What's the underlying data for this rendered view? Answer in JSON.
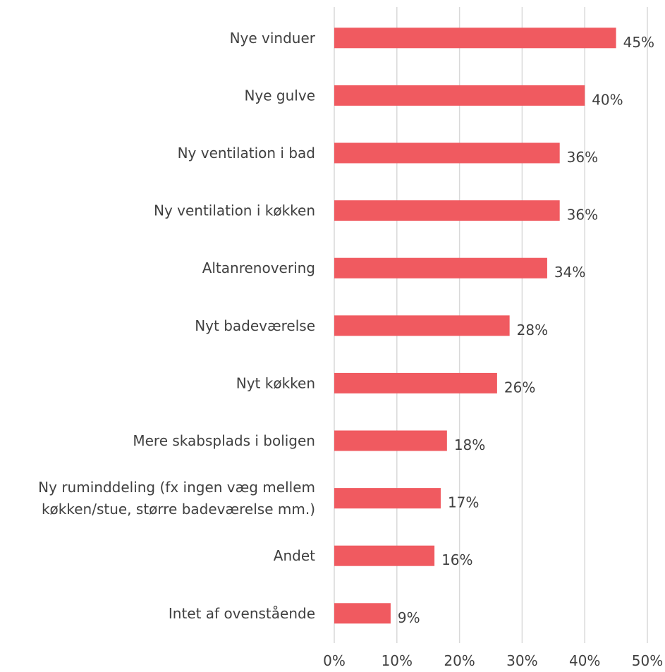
{
  "chart_data": {
    "type": "bar",
    "orientation": "horizontal",
    "title": "",
    "xlabel": "",
    "ylabel": "",
    "categories": [
      [
        "Nye vinduer"
      ],
      [
        "Nye gulve"
      ],
      [
        "Ny ventilation i bad"
      ],
      [
        "Ny ventilation i køkken"
      ],
      [
        "Altanrenovering"
      ],
      [
        "Nyt badeværelse"
      ],
      [
        "Nyt køkken"
      ],
      [
        "Mere skabsplads i boligen"
      ],
      [
        "Ny ruminddeling (fx ingen væg mellem",
        "køkken/stue, større badeværelse mm.)"
      ],
      [
        "Andet"
      ],
      [
        "Intet af ovenstående"
      ]
    ],
    "values": [
      45,
      40,
      36,
      36,
      34,
      28,
      26,
      18,
      17,
      16,
      9
    ],
    "data_labels": [
      "45%",
      "40%",
      "36%",
      "36%",
      "34%",
      "28%",
      "26%",
      "18%",
      "17%",
      "16%",
      "9%"
    ],
    "xlim": [
      0,
      50
    ],
    "x_ticks": [
      0,
      10,
      20,
      30,
      40,
      50
    ],
    "x_tick_labels": [
      "0%",
      "10%",
      "20%",
      "30%",
      "40%",
      "50%"
    ],
    "grid": "vertical",
    "legend": "none",
    "bar_color": "#f05a60",
    "gridline_color": "#d9d9d9",
    "text_color": "#404040"
  }
}
